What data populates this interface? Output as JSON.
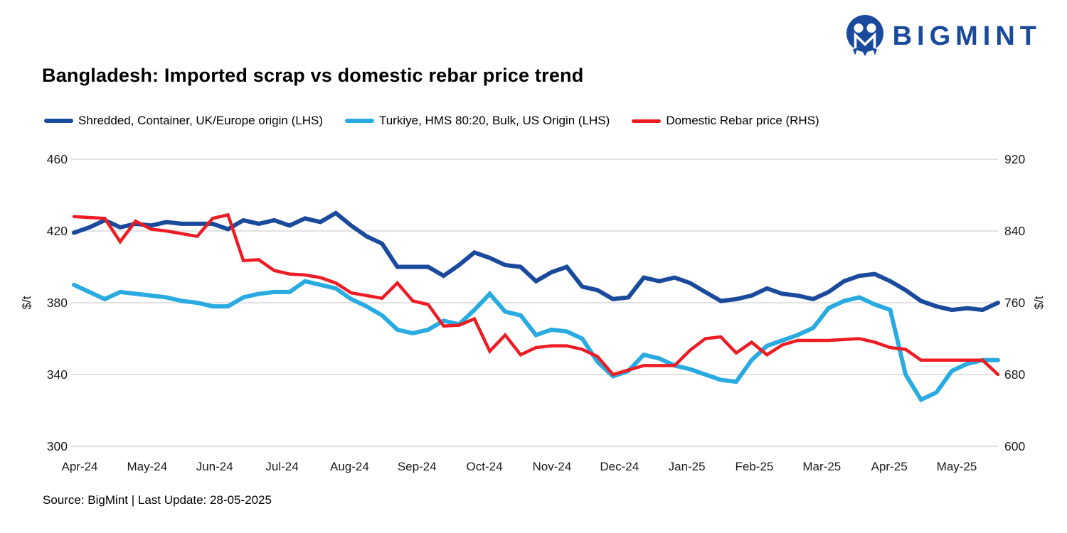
{
  "brand": {
    "name": "BIGMINT",
    "logo_color": "#1A4A9C"
  },
  "title": "Bangladesh: Imported scrap vs domestic rebar price trend",
  "source_note": "Source: BigMint | Last Update: 28-05-2025",
  "axes": {
    "left_unit": "$/t",
    "right_unit": "$/t",
    "left_ticks": [
      460,
      420,
      380,
      340,
      300
    ],
    "right_ticks": [
      920,
      840,
      760,
      680,
      600
    ]
  },
  "chart_data": {
    "type": "line",
    "frequency": "weekly",
    "grid": "horizontal",
    "legend_position": "top",
    "x_labels": [
      "Apr-24",
      "May-24",
      "Jun-24",
      "Jul-24",
      "Aug-24",
      "Sep-24",
      "Oct-24",
      "Nov-24",
      "Dec-24",
      "Jan-25",
      "Feb-25",
      "Mar-25",
      "Apr-25",
      "May-25"
    ],
    "left_axis": {
      "label": "$/t",
      "min": 300,
      "max": 460,
      "ticks": [
        300,
        340,
        380,
        420,
        460
      ]
    },
    "right_axis": {
      "label": "$/t",
      "min": 600,
      "max": 920,
      "ticks": [
        600,
        680,
        760,
        840,
        920
      ]
    },
    "gridline_color": "#D9D9D9",
    "series": [
      {
        "name": "Shredded, Container, UK/Europe origin (LHS)",
        "axis": "left",
        "color": "#1A4A9C",
        "values": [
          419,
          422,
          426,
          422,
          424,
          423,
          425,
          424,
          424,
          424,
          421,
          426,
          424,
          426,
          423,
          427,
          425,
          430,
          423,
          417,
          413,
          400,
          400,
          400,
          395,
          401,
          408,
          405,
          401,
          400,
          392,
          397,
          400,
          389,
          387,
          382,
          383,
          394,
          392,
          394,
          391,
          386,
          381,
          382,
          384,
          388,
          385,
          384,
          382,
          386,
          392,
          395,
          396,
          392,
          387,
          381,
          378,
          376,
          377,
          376,
          380
        ]
      },
      {
        "name": "Turkiye, HMS 80:20, Bulk, US Origin (LHS)",
        "axis": "left",
        "color": "#29ABE2",
        "values": [
          390,
          386,
          382,
          386,
          385,
          384,
          383,
          381,
          380,
          378,
          378,
          383,
          385,
          386,
          386,
          392,
          390,
          388,
          382,
          378,
          373,
          365,
          363,
          365,
          370,
          368,
          376,
          385,
          375,
          373,
          362,
          365,
          364,
          360,
          347,
          339,
          342,
          351,
          349,
          345,
          343,
          340,
          337,
          336,
          348,
          356,
          359,
          362,
          366,
          377,
          381,
          383,
          379,
          376,
          340,
          326,
          330,
          342,
          346,
          348,
          348
        ]
      },
      {
        "name": "Domestic Rebar price (RHS)",
        "axis": "right",
        "color": "#ED1C24",
        "values": [
          856,
          855,
          854,
          828,
          851,
          842,
          840,
          837,
          834,
          854,
          858,
          807,
          808,
          796,
          792,
          791,
          788,
          782,
          771,
          768,
          765,
          782,
          762,
          758,
          734,
          735,
          742,
          706,
          724,
          702,
          710,
          712,
          712,
          708,
          700,
          680,
          685,
          690,
          690,
          690,
          707,
          720,
          722,
          704,
          716,
          702,
          713,
          718,
          718,
          718,
          719,
          720,
          716,
          710,
          708,
          696,
          696,
          696,
          696,
          696,
          680
        ]
      }
    ]
  }
}
